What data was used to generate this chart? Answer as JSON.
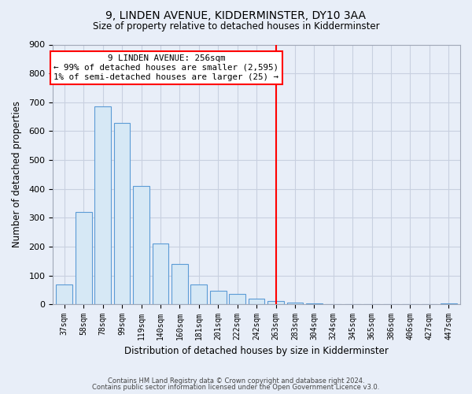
{
  "title": "9, LINDEN AVENUE, KIDDERMINSTER, DY10 3AA",
  "subtitle": "Size of property relative to detached houses in Kidderminster",
  "xlabel": "Distribution of detached houses by size in Kidderminster",
  "ylabel": "Number of detached properties",
  "categories": [
    "37sqm",
    "58sqm",
    "78sqm",
    "99sqm",
    "119sqm",
    "140sqm",
    "160sqm",
    "181sqm",
    "201sqm",
    "222sqm",
    "242sqm",
    "263sqm",
    "283sqm",
    "304sqm",
    "324sqm",
    "345sqm",
    "365sqm",
    "386sqm",
    "406sqm",
    "427sqm",
    "447sqm"
  ],
  "values": [
    70,
    320,
    685,
    628,
    410,
    210,
    140,
    68,
    48,
    35,
    20,
    12,
    5,
    2,
    1,
    1,
    0,
    0,
    0,
    0,
    3
  ],
  "bar_color": "#d6e8f5",
  "bar_edge_color": "#5b9bd5",
  "reference_line_index": 11,
  "annotation_title": "9 LINDEN AVENUE: 256sqm",
  "annotation_line1": "← 99% of detached houses are smaller (2,595)",
  "annotation_line2": "1% of semi-detached houses are larger (25) →",
  "ylim": [
    0,
    900
  ],
  "yticks": [
    0,
    100,
    200,
    300,
    400,
    500,
    600,
    700,
    800,
    900
  ],
  "footer_line1": "Contains HM Land Registry data © Crown copyright and database right 2024.",
  "footer_line2": "Contains public sector information licensed under the Open Government Licence v3.0.",
  "bg_color": "#e8eef8",
  "plot_bg_color": "#e8eef8",
  "grid_color": "#c8d0e0",
  "spine_color": "#a0a8b8"
}
